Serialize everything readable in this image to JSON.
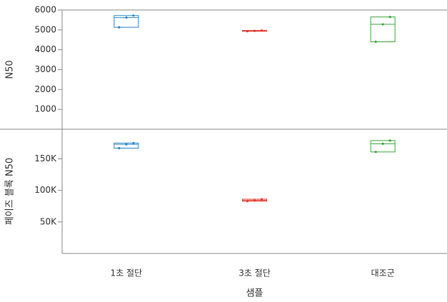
{
  "chart_data": [
    {
      "type": "box",
      "ylabel": "N50",
      "ylim": [
        0,
        6000
      ],
      "yticks": [
        1000,
        2000,
        3000,
        4000,
        5000,
        6000
      ],
      "boxes": [
        {
          "color": "#2a88c8",
          "q1": 5130,
          "median": 5620,
          "q3": 5720,
          "points": [
            5130,
            5620,
            5720
          ]
        },
        {
          "color": "#e03a2f",
          "q1": 4930,
          "median": 4950,
          "q3": 4970,
          "points": [
            4930,
            4950,
            4970
          ]
        },
        {
          "color": "#3aa83a",
          "q1": 4400,
          "median": 5280,
          "q3": 5650,
          "points": [
            4400,
            5280,
            5650
          ]
        }
      ]
    },
    {
      "type": "box",
      "ylabel": "페이즈 블록 N50",
      "xlabel": "샘플",
      "ylim": [
        0,
        197000
      ],
      "yticks": [
        {
          "value": 50000,
          "label": "50K"
        },
        {
          "value": 100000,
          "label": "100K"
        },
        {
          "value": 150000,
          "label": "150K"
        }
      ],
      "categories": [
        "1초 절단",
        "3초 절단",
        "대조군"
      ],
      "boxes": [
        {
          "color": "#2a88c8",
          "q1": 167000,
          "median": 173000,
          "q3": 175000,
          "points": [
            167000,
            173000,
            175000
          ]
        },
        {
          "color": "#e03a2f",
          "q1": 83000,
          "median": 84000,
          "q3": 86000,
          "points": [
            83000,
            84000,
            86000
          ]
        },
        {
          "color": "#3aa83a",
          "q1": 161000,
          "median": 174000,
          "q3": 179000,
          "points": [
            161000,
            174000,
            179000
          ]
        }
      ]
    }
  ]
}
